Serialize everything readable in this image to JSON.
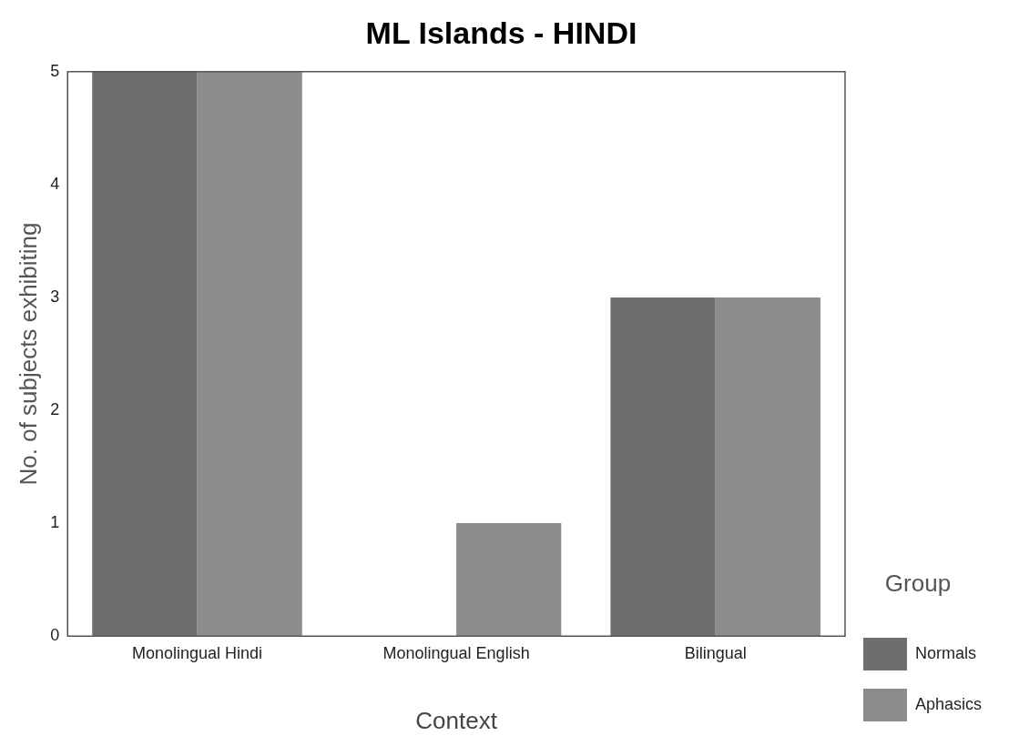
{
  "chart_data": {
    "type": "bar",
    "title": "ML Islands - HINDI",
    "xlabel": "Context",
    "ylabel": "No. of subjects exhibiting",
    "legend_title": "Group",
    "categories": [
      "Monolingual Hindi",
      "Monolingual English",
      "Bilingual"
    ],
    "series": [
      {
        "name": "Normals",
        "color": "#6e6e6e",
        "values": [
          5,
          0,
          3
        ]
      },
      {
        "name": "Aphasics",
        "color": "#8c8c8c",
        "values": [
          5,
          1,
          3
        ]
      }
    ],
    "ylim": [
      0,
      5
    ],
    "yticks": [
      0,
      1,
      2,
      3,
      4,
      5
    ],
    "grid": false,
    "legend": "right"
  }
}
